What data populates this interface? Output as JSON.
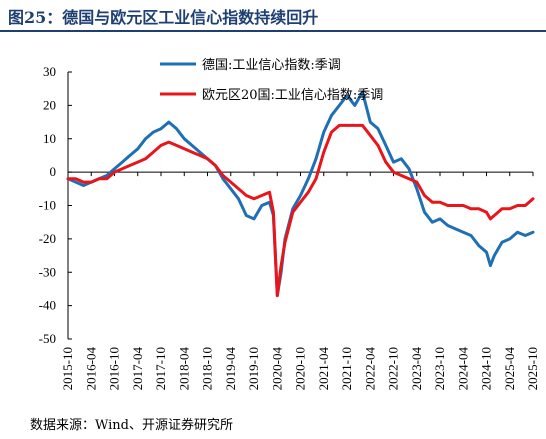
{
  "title": "图25：德国与欧元区工业信心指数持续回升",
  "source": "数据来源：Wind、开源证券研究所",
  "chart_data": {
    "type": "line",
    "ylim": [
      -50,
      30
    ],
    "yticks": [
      30,
      20,
      10,
      0,
      -10,
      -20,
      -30,
      -40,
      -50
    ],
    "x_tick_labels": [
      "2015-10",
      "2016-04",
      "2016-10",
      "2017-04",
      "2017-10",
      "2018-04",
      "2018-10",
      "2019-04",
      "2019-10",
      "2020-04",
      "2020-10",
      "2021-04",
      "2021-10",
      "2022-04",
      "2022-10",
      "2023-04",
      "2023-10",
      "2024-04",
      "2024-10",
      "2025-04",
      "2025-10"
    ],
    "legend_position": "top-center",
    "series": [
      {
        "name": "德国:工业信心指数:季调",
        "color": "#1f6fb4",
        "points": [
          [
            "2015-10",
            -2
          ],
          [
            "2015-12",
            -3
          ],
          [
            "2016-02",
            -4
          ],
          [
            "2016-04",
            -3
          ],
          [
            "2016-06",
            -2
          ],
          [
            "2016-08",
            -1
          ],
          [
            "2016-10",
            1
          ],
          [
            "2016-12",
            3
          ],
          [
            "2017-02",
            5
          ],
          [
            "2017-04",
            7
          ],
          [
            "2017-06",
            10
          ],
          [
            "2017-08",
            12
          ],
          [
            "2017-10",
            13
          ],
          [
            "2017-12",
            15
          ],
          [
            "2018-02",
            13
          ],
          [
            "2018-04",
            10
          ],
          [
            "2018-06",
            8
          ],
          [
            "2018-08",
            6
          ],
          [
            "2018-10",
            4
          ],
          [
            "2018-12",
            2
          ],
          [
            "2019-02",
            -2
          ],
          [
            "2019-04",
            -5
          ],
          [
            "2019-06",
            -8
          ],
          [
            "2019-08",
            -13
          ],
          [
            "2019-10",
            -14
          ],
          [
            "2019-12",
            -10
          ],
          [
            "2020-02",
            -9
          ],
          [
            "2020-03",
            -13
          ],
          [
            "2020-04",
            -37
          ],
          [
            "2020-05",
            -30
          ],
          [
            "2020-06",
            -20
          ],
          [
            "2020-08",
            -11
          ],
          [
            "2020-10",
            -7
          ],
          [
            "2020-12",
            -2
          ],
          [
            "2021-02",
            4
          ],
          [
            "2021-04",
            12
          ],
          [
            "2021-06",
            17
          ],
          [
            "2021-08",
            20
          ],
          [
            "2021-10",
            23
          ],
          [
            "2021-12",
            20
          ],
          [
            "2022-02",
            24
          ],
          [
            "2022-04",
            15
          ],
          [
            "2022-06",
            13
          ],
          [
            "2022-08",
            8
          ],
          [
            "2022-10",
            3
          ],
          [
            "2022-12",
            4
          ],
          [
            "2023-02",
            1
          ],
          [
            "2023-04",
            -5
          ],
          [
            "2023-06",
            -12
          ],
          [
            "2023-08",
            -15
          ],
          [
            "2023-10",
            -14
          ],
          [
            "2023-12",
            -16
          ],
          [
            "2024-02",
            -17
          ],
          [
            "2024-04",
            -18
          ],
          [
            "2024-06",
            -19
          ],
          [
            "2024-08",
            -22
          ],
          [
            "2024-10",
            -24
          ],
          [
            "2024-11",
            -28
          ],
          [
            "2024-12",
            -25
          ],
          [
            "2025-02",
            -21
          ],
          [
            "2025-04",
            -20
          ],
          [
            "2025-06",
            -18
          ],
          [
            "2025-08",
            -19
          ],
          [
            "2025-10",
            -18
          ]
        ]
      },
      {
        "name": "欧元区20国:工业信心指数:季调",
        "color": "#e8151b",
        "points": [
          [
            "2015-10",
            -2
          ],
          [
            "2015-12",
            -2
          ],
          [
            "2016-02",
            -3
          ],
          [
            "2016-04",
            -3
          ],
          [
            "2016-06",
            -2
          ],
          [
            "2016-08",
            -2
          ],
          [
            "2016-10",
            0
          ],
          [
            "2016-12",
            1
          ],
          [
            "2017-02",
            2
          ],
          [
            "2017-04",
            3
          ],
          [
            "2017-06",
            4
          ],
          [
            "2017-08",
            6
          ],
          [
            "2017-10",
            8
          ],
          [
            "2017-12",
            9
          ],
          [
            "2018-02",
            8
          ],
          [
            "2018-04",
            7
          ],
          [
            "2018-06",
            6
          ],
          [
            "2018-08",
            5
          ],
          [
            "2018-10",
            4
          ],
          [
            "2018-12",
            2
          ],
          [
            "2019-02",
            -1
          ],
          [
            "2019-04",
            -3
          ],
          [
            "2019-06",
            -5
          ],
          [
            "2019-08",
            -7
          ],
          [
            "2019-10",
            -8
          ],
          [
            "2019-12",
            -7
          ],
          [
            "2020-02",
            -6
          ],
          [
            "2020-03",
            -12
          ],
          [
            "2020-04",
            -37
          ],
          [
            "2020-05",
            -28
          ],
          [
            "2020-06",
            -21
          ],
          [
            "2020-08",
            -12
          ],
          [
            "2020-10",
            -9
          ],
          [
            "2020-12",
            -6
          ],
          [
            "2021-02",
            -2
          ],
          [
            "2021-04",
            6
          ],
          [
            "2021-06",
            12
          ],
          [
            "2021-08",
            14
          ],
          [
            "2021-10",
            14
          ],
          [
            "2021-12",
            14
          ],
          [
            "2022-02",
            14
          ],
          [
            "2022-04",
            11
          ],
          [
            "2022-06",
            8
          ],
          [
            "2022-08",
            3
          ],
          [
            "2022-10",
            0
          ],
          [
            "2022-12",
            -1
          ],
          [
            "2023-02",
            -2
          ],
          [
            "2023-04",
            -3
          ],
          [
            "2023-06",
            -7
          ],
          [
            "2023-08",
            -9
          ],
          [
            "2023-10",
            -9
          ],
          [
            "2023-12",
            -10
          ],
          [
            "2024-02",
            -10
          ],
          [
            "2024-04",
            -10
          ],
          [
            "2024-06",
            -11
          ],
          [
            "2024-08",
            -11
          ],
          [
            "2024-10",
            -12
          ],
          [
            "2024-11",
            -14
          ],
          [
            "2024-12",
            -13
          ],
          [
            "2025-02",
            -11
          ],
          [
            "2025-04",
            -11
          ],
          [
            "2025-06",
            -10
          ],
          [
            "2025-08",
            -10
          ],
          [
            "2025-10",
            -8
          ]
        ]
      }
    ]
  }
}
